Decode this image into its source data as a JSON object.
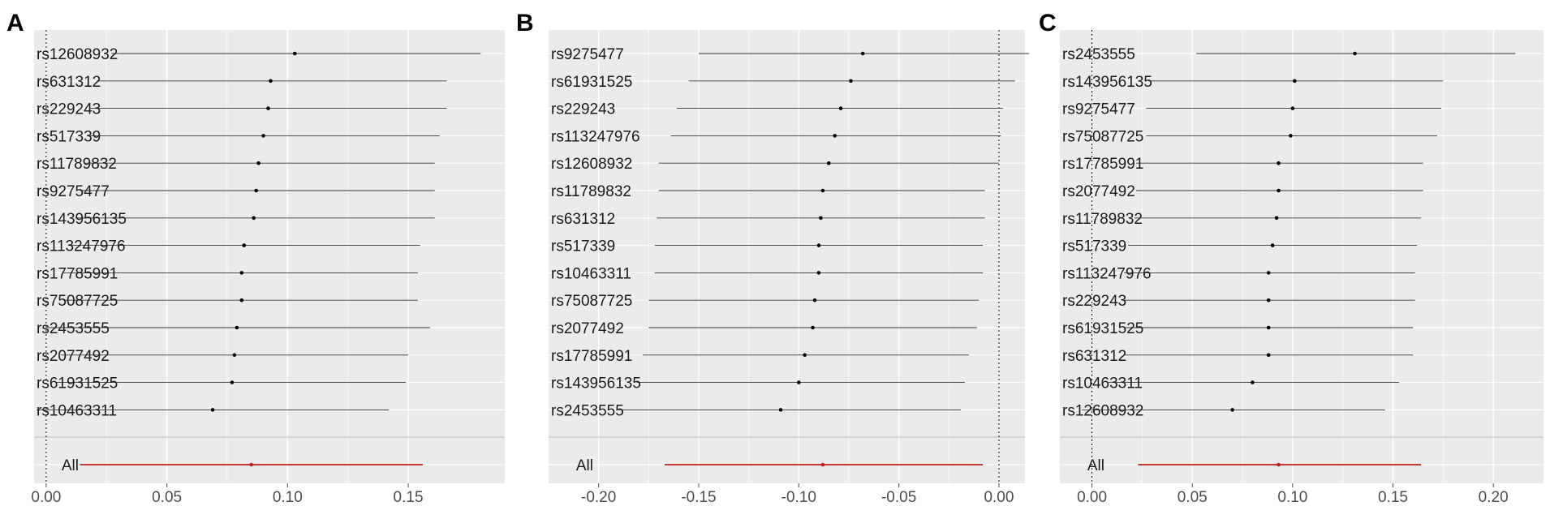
{
  "colors": {
    "panel_bg": "#ebebeb",
    "grid": "#ffffff",
    "estimate": "#000000",
    "overall": "#c0201a",
    "zero_line": "#000000"
  },
  "chart_data": [
    {
      "type": "forest",
      "panel_label": "A",
      "xlim": [
        -0.005,
        0.19
      ],
      "xticks": [
        0.0,
        0.05,
        0.1,
        0.15
      ],
      "tick_labels": [
        "0.00",
        "0.05",
        "0.10",
        "0.15"
      ],
      "snps": [
        {
          "name": "rs12608932",
          "estimate": 0.103,
          "lower": 0.027,
          "upper": 0.18
        },
        {
          "name": "rs631312",
          "estimate": 0.093,
          "lower": 0.021,
          "upper": 0.166
        },
        {
          "name": "rs229243",
          "estimate": 0.092,
          "lower": 0.018,
          "upper": 0.166
        },
        {
          "name": "rs517339",
          "estimate": 0.09,
          "lower": 0.018,
          "upper": 0.163
        },
        {
          "name": "rs11789832",
          "estimate": 0.088,
          "lower": 0.016,
          "upper": 0.161
        },
        {
          "name": "rs9275477",
          "estimate": 0.087,
          "lower": 0.014,
          "upper": 0.161
        },
        {
          "name": "rs143956135",
          "estimate": 0.086,
          "lower": 0.012,
          "upper": 0.161
        },
        {
          "name": "rs113247976",
          "estimate": 0.082,
          "lower": 0.009,
          "upper": 0.155
        },
        {
          "name": "rs17785991",
          "estimate": 0.081,
          "lower": 0.007,
          "upper": 0.154
        },
        {
          "name": "rs75087725",
          "estimate": 0.081,
          "lower": 0.007,
          "upper": 0.154
        },
        {
          "name": "rs2453555",
          "estimate": 0.079,
          "lower": 0.0,
          "upper": 0.159
        },
        {
          "name": "rs2077492",
          "estimate": 0.078,
          "lower": 0.006,
          "upper": 0.15
        },
        {
          "name": "rs61931525",
          "estimate": 0.077,
          "lower": 0.004,
          "upper": 0.149
        },
        {
          "name": "rs10463311",
          "estimate": 0.069,
          "lower": -0.004,
          "upper": 0.142
        }
      ],
      "overall": {
        "name": "All",
        "estimate": 0.085,
        "lower": 0.014,
        "upper": 0.156
      }
    },
    {
      "type": "forest",
      "panel_label": "B",
      "xlim": [
        -0.225,
        0.013
      ],
      "xticks": [
        -0.2,
        -0.15,
        -0.1,
        -0.05,
        0.0
      ],
      "tick_labels": [
        "-0.20",
        "-0.15",
        "-0.10",
        "-0.05",
        "0.00"
      ],
      "snps": [
        {
          "name": "rs9275477",
          "estimate": -0.068,
          "lower": -0.15,
          "upper": 0.015
        },
        {
          "name": "rs61931525",
          "estimate": -0.074,
          "lower": -0.155,
          "upper": 0.008
        },
        {
          "name": "rs229243",
          "estimate": -0.079,
          "lower": -0.161,
          "upper": 0.002
        },
        {
          "name": "rs113247976",
          "estimate": -0.082,
          "lower": -0.164,
          "upper": 0.001
        },
        {
          "name": "rs12608932",
          "estimate": -0.085,
          "lower": -0.17,
          "upper": 0.0
        },
        {
          "name": "rs11789832",
          "estimate": -0.088,
          "lower": -0.17,
          "upper": -0.007
        },
        {
          "name": "rs631312",
          "estimate": -0.089,
          "lower": -0.171,
          "upper": -0.007
        },
        {
          "name": "rs517339",
          "estimate": -0.09,
          "lower": -0.172,
          "upper": -0.008
        },
        {
          "name": "rs10463311",
          "estimate": -0.09,
          "lower": -0.172,
          "upper": -0.008
        },
        {
          "name": "rs75087725",
          "estimate": -0.092,
          "lower": -0.175,
          "upper": -0.01
        },
        {
          "name": "rs2077492",
          "estimate": -0.093,
          "lower": -0.175,
          "upper": -0.011
        },
        {
          "name": "rs17785991",
          "estimate": -0.097,
          "lower": -0.178,
          "upper": -0.015
        },
        {
          "name": "rs143956135",
          "estimate": -0.1,
          "lower": -0.181,
          "upper": -0.017
        },
        {
          "name": "rs2453555",
          "estimate": -0.109,
          "lower": -0.19,
          "upper": -0.019
        }
      ],
      "overall": {
        "name": "All",
        "estimate": -0.088,
        "lower": -0.167,
        "upper": -0.008
      }
    },
    {
      "type": "forest",
      "panel_label": "C",
      "xlim": [
        -0.016,
        0.225
      ],
      "xticks": [
        0.0,
        0.05,
        0.1,
        0.15,
        0.2
      ],
      "tick_labels": [
        "0.00",
        "0.05",
        "0.10",
        "0.15",
        "0.20"
      ],
      "snps": [
        {
          "name": "rs2453555",
          "estimate": 0.131,
          "lower": 0.052,
          "upper": 0.211
        },
        {
          "name": "rs143956135",
          "estimate": 0.101,
          "lower": 0.028,
          "upper": 0.175
        },
        {
          "name": "rs9275477",
          "estimate": 0.1,
          "lower": 0.027,
          "upper": 0.174
        },
        {
          "name": "rs75087725",
          "estimate": 0.099,
          "lower": 0.027,
          "upper": 0.172
        },
        {
          "name": "rs17785991",
          "estimate": 0.093,
          "lower": 0.022,
          "upper": 0.165
        },
        {
          "name": "rs2077492",
          "estimate": 0.093,
          "lower": 0.022,
          "upper": 0.165
        },
        {
          "name": "rs11789832",
          "estimate": 0.092,
          "lower": 0.021,
          "upper": 0.164
        },
        {
          "name": "rs517339",
          "estimate": 0.09,
          "lower": 0.018,
          "upper": 0.162
        },
        {
          "name": "rs113247976",
          "estimate": 0.088,
          "lower": 0.016,
          "upper": 0.161
        },
        {
          "name": "rs229243",
          "estimate": 0.088,
          "lower": 0.016,
          "upper": 0.161
        },
        {
          "name": "rs61931525",
          "estimate": 0.088,
          "lower": 0.016,
          "upper": 0.16
        },
        {
          "name": "rs631312",
          "estimate": 0.088,
          "lower": 0.016,
          "upper": 0.16
        },
        {
          "name": "rs10463311",
          "estimate": 0.08,
          "lower": 0.008,
          "upper": 0.153
        },
        {
          "name": "rs12608932",
          "estimate": 0.07,
          "lower": -0.005,
          "upper": 0.146
        }
      ],
      "overall": {
        "name": "All",
        "estimate": 0.093,
        "lower": 0.023,
        "upper": 0.164
      }
    }
  ]
}
